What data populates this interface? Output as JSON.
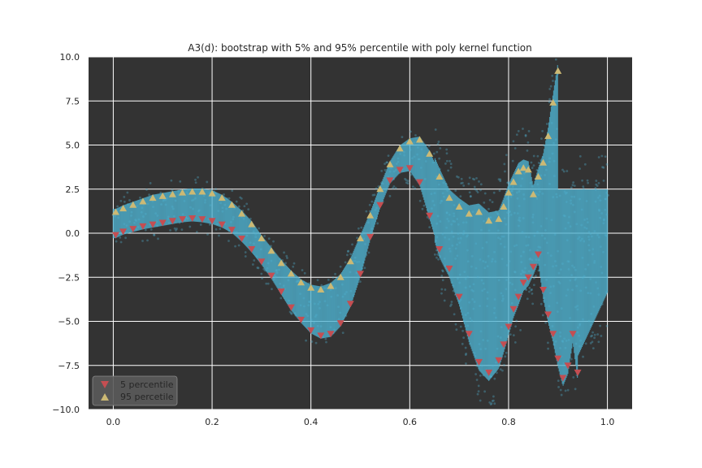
{
  "chart_data": {
    "type": "scatter",
    "title": "A3(d): bootstrap with 5% and 95% percentile with poly kernel function",
    "xlabel": "",
    "ylabel": "",
    "xlim": [
      -0.05,
      1.05
    ],
    "ylim": [
      -10.0,
      10.0
    ],
    "xticks": [
      0.0,
      0.2,
      0.4,
      0.6,
      0.8,
      1.0
    ],
    "xtick_labels": [
      "0.0",
      "0.2",
      "0.4",
      "0.6",
      "0.8",
      "1.0"
    ],
    "yticks": [
      10.0,
      7.5,
      5.0,
      2.5,
      0.0,
      -2.5,
      -5.0,
      -7.5,
      -10.0
    ],
    "ytick_labels": [
      "10.0",
      "7.5",
      "5.0",
      "2.5",
      "0.0",
      "−2.5",
      "−5.0",
      "−7.5",
      "−10.0"
    ],
    "grid": true,
    "legend_position": "lower-left",
    "background_color": "#333333",
    "bootstrap_color": "#4fb3d1",
    "series": [
      {
        "name": "5 percentile",
        "marker": "triangle-down",
        "color": "#c44e52",
        "x": [
          0.005,
          0.02,
          0.04,
          0.06,
          0.08,
          0.1,
          0.12,
          0.14,
          0.16,
          0.18,
          0.2,
          0.22,
          0.24,
          0.26,
          0.28,
          0.3,
          0.32,
          0.34,
          0.36,
          0.38,
          0.4,
          0.42,
          0.44,
          0.46,
          0.48,
          0.5,
          0.52,
          0.54,
          0.56,
          0.58,
          0.6,
          0.62,
          0.64,
          0.66,
          0.68,
          0.7,
          0.72,
          0.74,
          0.76,
          0.78,
          0.79,
          0.8,
          0.81,
          0.82,
          0.83,
          0.84,
          0.85,
          0.86,
          0.87,
          0.88,
          0.89,
          0.9,
          0.91,
          0.92,
          0.93,
          0.94
        ],
        "y": [
          -0.1,
          0.1,
          0.25,
          0.4,
          0.5,
          0.6,
          0.7,
          0.8,
          0.85,
          0.8,
          0.7,
          0.5,
          0.2,
          -0.3,
          -0.9,
          -1.6,
          -2.4,
          -3.3,
          -4.2,
          -4.9,
          -5.5,
          -5.8,
          -5.7,
          -5.1,
          -4.0,
          -2.3,
          -0.2,
          1.6,
          3.0,
          3.6,
          3.7,
          2.9,
          1.0,
          -0.9,
          -2.0,
          -3.6,
          -5.7,
          -7.3,
          -7.9,
          -7.2,
          -6.3,
          -5.3,
          -4.3,
          -3.6,
          -2.8,
          -2.5,
          -1.9,
          -1.2,
          -3.2,
          -4.6,
          -5.7,
          -7.1,
          -8.2,
          -7.5,
          -5.7,
          -7.9
        ]
      },
      {
        "name": "95 percetile",
        "marker": "triangle-up",
        "color": "#ccb974",
        "x": [
          0.005,
          0.02,
          0.04,
          0.06,
          0.08,
          0.1,
          0.12,
          0.14,
          0.16,
          0.18,
          0.2,
          0.22,
          0.24,
          0.26,
          0.28,
          0.3,
          0.32,
          0.34,
          0.36,
          0.38,
          0.4,
          0.42,
          0.44,
          0.46,
          0.48,
          0.5,
          0.52,
          0.54,
          0.56,
          0.58,
          0.6,
          0.62,
          0.64,
          0.66,
          0.68,
          0.7,
          0.72,
          0.74,
          0.76,
          0.78,
          0.79,
          0.8,
          0.81,
          0.82,
          0.83,
          0.84,
          0.85,
          0.86,
          0.87,
          0.88,
          0.89,
          0.9
        ],
        "y": [
          1.2,
          1.4,
          1.6,
          1.8,
          2.0,
          2.1,
          2.2,
          2.3,
          2.35,
          2.35,
          2.25,
          2.0,
          1.6,
          1.1,
          0.5,
          -0.3,
          -1.0,
          -1.7,
          -2.3,
          -2.8,
          -3.1,
          -3.2,
          -3.0,
          -2.5,
          -1.6,
          -0.3,
          1.0,
          2.5,
          3.9,
          4.8,
          5.2,
          5.3,
          4.5,
          3.2,
          2.0,
          1.5,
          1.1,
          1.2,
          0.7,
          0.8,
          1.5,
          2.3,
          2.9,
          3.5,
          3.7,
          3.6,
          2.2,
          3.2,
          4.0,
          5.5,
          7.4,
          9.2
        ]
      }
    ]
  }
}
